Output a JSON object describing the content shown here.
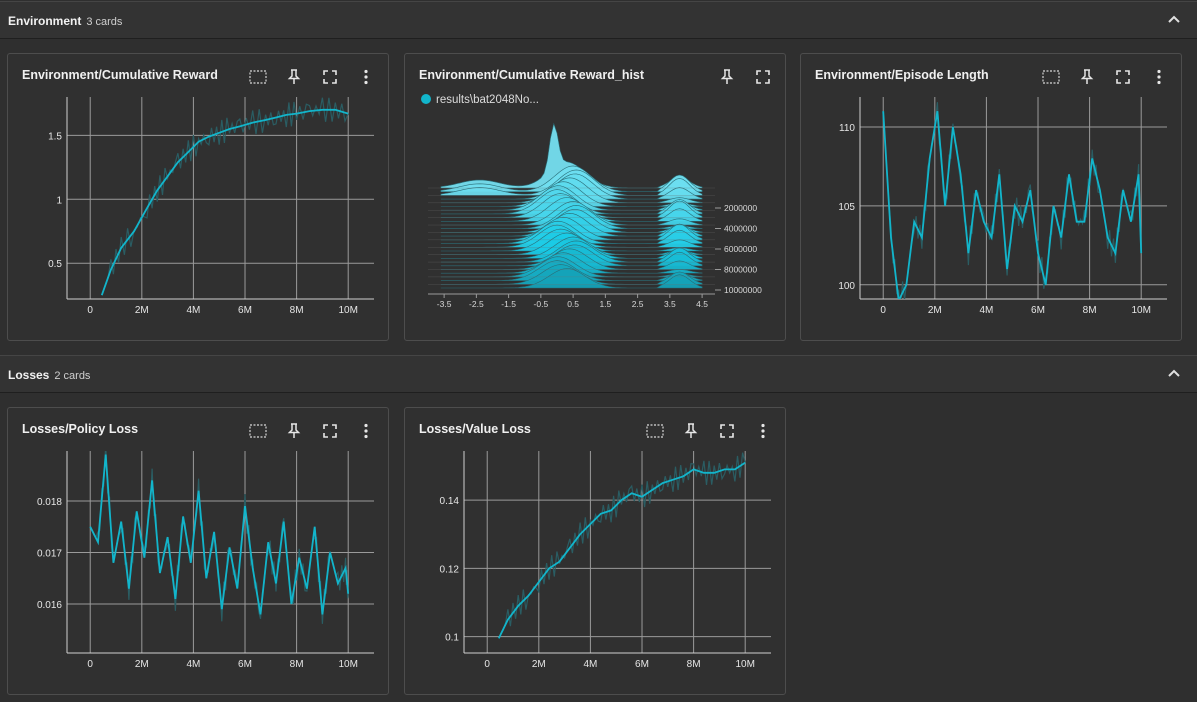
{
  "sections": [
    {
      "title": "Environment",
      "count": "3 cards"
    },
    {
      "title": "Losses",
      "count": "2 cards"
    }
  ],
  "colors": {
    "accent": "#12b5cb",
    "series_shadow": "#2a5d63",
    "grid": "#9a9a9a"
  },
  "icons": {
    "toolbar": [
      "fit-domain-icon",
      "pin-icon",
      "fullscreen-icon",
      "more-vert-icon"
    ],
    "collapse": "chevron-up-icon"
  },
  "cards": {
    "cum_reward": {
      "title": "Environment/Cumulative Reward"
    },
    "cum_reward_hist": {
      "title": "Environment/Cumulative Reward_hist",
      "legend": "results\\bat2048No..."
    },
    "episode_length": {
      "title": "Environment/Episode Length"
    },
    "policy_loss": {
      "title": "Losses/Policy Loss"
    },
    "value_loss": {
      "title": "Losses/Value Loss"
    }
  },
  "chart_data": [
    {
      "id": "cum_reward",
      "type": "line",
      "x_ticks": [
        "0",
        "2M",
        "4M",
        "6M",
        "8M",
        "10M"
      ],
      "x_tick_values": [
        0,
        2,
        4,
        6,
        8,
        10
      ],
      "y_ticks": [
        "0.5",
        "1",
        "1.5"
      ],
      "y_tick_values": [
        0.5,
        1,
        1.5
      ],
      "xlim": [
        -0.9,
        11.0
      ],
      "ylim": [
        0.22,
        1.8
      ],
      "series": [
        {
          "x": [
            0.45,
            0.8,
            1.2,
            1.7,
            2.2,
            2.6,
            3.0,
            3.4,
            3.8,
            4.2,
            4.6,
            5.0,
            5.4,
            5.8,
            6.3,
            6.8,
            7.2,
            7.6,
            8.0,
            8.5,
            9.0,
            9.5,
            10.0
          ],
          "y": [
            0.25,
            0.45,
            0.62,
            0.75,
            0.93,
            1.07,
            1.18,
            1.29,
            1.37,
            1.45,
            1.49,
            1.52,
            1.55,
            1.57,
            1.6,
            1.62,
            1.64,
            1.66,
            1.67,
            1.69,
            1.7,
            1.7,
            1.67
          ]
        }
      ]
    },
    {
      "id": "cum_reward_hist",
      "type": "area",
      "x_ticks": [
        "-3.5",
        "-2.5",
        "-1.5",
        "-0.5",
        "0.5",
        "1.5",
        "2.5",
        "3.5",
        "4.5"
      ],
      "x_tick_values": [
        -3.5,
        -2.5,
        -1.5,
        -0.5,
        0.5,
        1.5,
        2.5,
        3.5,
        4.5
      ],
      "y_ticks": [
        "2000000",
        "4000000",
        "6000000",
        "8000000",
        "10000000"
      ],
      "y_tick_values": [
        2000000,
        4000000,
        6000000,
        8000000,
        10000000
      ],
      "xlim": [
        -4.0,
        4.9
      ]
    },
    {
      "id": "episode_length",
      "type": "line",
      "x_ticks": [
        "0",
        "2M",
        "4M",
        "6M",
        "8M",
        "10M"
      ],
      "x_tick_values": [
        0,
        2,
        4,
        6,
        8,
        10
      ],
      "y_ticks": [
        "100",
        "105",
        "110"
      ],
      "y_tick_values": [
        100,
        105,
        110
      ],
      "xlim": [
        -0.9,
        11.0
      ],
      "ylim": [
        99.1,
        111.9
      ],
      "series": [
        {
          "x": [
            0,
            0.3,
            0.6,
            0.9,
            1.2,
            1.5,
            1.8,
            2.1,
            2.4,
            2.7,
            3.0,
            3.3,
            3.6,
            3.9,
            4.2,
            4.5,
            4.8,
            5.1,
            5.4,
            5.7,
            6.0,
            6.3,
            6.6,
            6.9,
            7.2,
            7.5,
            7.8,
            8.1,
            8.4,
            8.7,
            9.0,
            9.3,
            9.6,
            9.9,
            10.0
          ],
          "y": [
            111,
            103,
            99,
            100,
            104,
            103,
            108,
            111,
            105,
            110,
            107,
            102,
            106,
            104,
            103,
            107,
            101,
            105,
            104,
            106,
            102,
            100,
            105,
            103,
            107,
            104,
            104,
            108,
            106,
            103,
            102,
            106,
            104,
            107,
            102
          ]
        }
      ]
    },
    {
      "id": "policy_loss",
      "type": "line",
      "x_ticks": [
        "0",
        "2M",
        "4M",
        "6M",
        "8M",
        "10M"
      ],
      "x_tick_values": [
        0,
        2,
        4,
        6,
        8,
        10
      ],
      "y_ticks": [
        "0.016",
        "0.017",
        "0.018"
      ],
      "y_tick_values": [
        0.016,
        0.017,
        0.018
      ],
      "xlim": [
        -0.9,
        11.0
      ],
      "ylim": [
        0.01505,
        0.01897
      ],
      "series": [
        {
          "x": [
            0,
            0.3,
            0.6,
            0.9,
            1.2,
            1.5,
            1.8,
            2.1,
            2.4,
            2.7,
            3.0,
            3.3,
            3.6,
            3.9,
            4.2,
            4.5,
            4.8,
            5.1,
            5.4,
            5.7,
            6.0,
            6.3,
            6.6,
            6.9,
            7.2,
            7.5,
            7.8,
            8.1,
            8.4,
            8.7,
            9.0,
            9.3,
            9.6,
            9.9,
            10.0
          ],
          "y": [
            0.0175,
            0.0172,
            0.0189,
            0.0168,
            0.0176,
            0.0163,
            0.0178,
            0.0169,
            0.0184,
            0.0166,
            0.0173,
            0.0161,
            0.0177,
            0.0168,
            0.0182,
            0.0165,
            0.0174,
            0.0159,
            0.0171,
            0.0163,
            0.0179,
            0.0167,
            0.0158,
            0.0172,
            0.0164,
            0.0176,
            0.016,
            0.0169,
            0.0163,
            0.0175,
            0.0158,
            0.017,
            0.0164,
            0.0167,
            0.0162
          ]
        }
      ]
    },
    {
      "id": "value_loss",
      "type": "line",
      "x_ticks": [
        "0",
        "2M",
        "4M",
        "6M",
        "8M",
        "10M"
      ],
      "x_tick_values": [
        0,
        2,
        4,
        6,
        8,
        10
      ],
      "y_ticks": [
        "0.1",
        "0.12",
        "0.14"
      ],
      "y_tick_values": [
        0.1,
        0.12,
        0.14
      ],
      "xlim": [
        -0.9,
        11.0
      ],
      "ylim": [
        0.0952,
        0.1544
      ],
      "series": [
        {
          "x": [
            0.45,
            0.8,
            1.2,
            1.6,
            2.0,
            2.4,
            2.8,
            3.2,
            3.6,
            4.0,
            4.4,
            4.8,
            5.2,
            5.6,
            6.0,
            6.4,
            6.8,
            7.2,
            7.6,
            8.0,
            8.4,
            8.8,
            9.2,
            9.6,
            10.0
          ],
          "y": [
            0.0995,
            0.105,
            0.109,
            0.112,
            0.116,
            0.12,
            0.122,
            0.126,
            0.13,
            0.133,
            0.136,
            0.137,
            0.14,
            0.142,
            0.141,
            0.143,
            0.145,
            0.146,
            0.147,
            0.149,
            0.148,
            0.148,
            0.149,
            0.149,
            0.151
          ]
        }
      ]
    }
  ]
}
